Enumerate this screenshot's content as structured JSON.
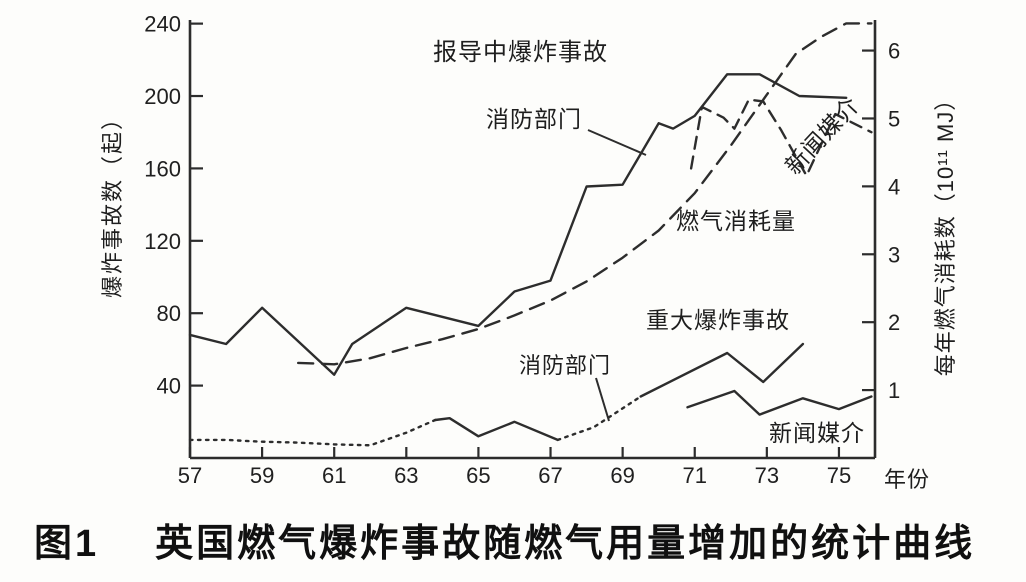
{
  "figure": {
    "caption_prefix": "图1",
    "caption": "英国燃气爆炸事故随燃气用量增加的统计曲线"
  },
  "colors": {
    "line": "#2d2d2d",
    "text": "#1d1d1d",
    "background": "#fdfdfb"
  },
  "chart_data": {
    "type": "line",
    "title": "英国燃气爆炸事故随燃气用量增加的统计曲线",
    "grid": false,
    "legend": "inline-annotations",
    "x_axis": {
      "label": "年份",
      "min": 57,
      "max": 76,
      "ticks": [
        57,
        59,
        61,
        63,
        65,
        67,
        69,
        71,
        73,
        75
      ]
    },
    "y_left": {
      "label": "爆炸事故数（起）",
      "min": 0,
      "max": 242,
      "ticks": [
        240,
        200,
        160,
        120,
        80,
        40
      ]
    },
    "y_right": {
      "label": "每年燃气消耗数（10¹¹ MJ）",
      "min": 0,
      "max": 6.45,
      "ticks": [
        6,
        5,
        4,
        3,
        2,
        1
      ]
    },
    "annotations": {
      "reported_explosions": "报导中爆炸事故",
      "fire_dept_top": "消防部门",
      "news_media_top": "新闻媒介",
      "gas_consumption": "燃气消耗量",
      "major_explosions": "重大爆炸事故",
      "fire_dept_bottom": "消防部门",
      "news_media_bottom": "新闻媒介"
    },
    "series": [
      {
        "id": "reported-fire",
        "label": "报导中爆炸事故（消防部门）",
        "axis": "left",
        "segments": [
          {
            "style": "solid",
            "points": [
              [
                57,
                68
              ],
              [
                58,
                63
              ],
              [
                59,
                83
              ],
              [
                61,
                46
              ],
              [
                61.5,
                63
              ],
              [
                63,
                83
              ],
              [
                65,
                73
              ],
              [
                66,
                92
              ],
              [
                67,
                98
              ],
              [
                68,
                150
              ],
              [
                69,
                151
              ],
              [
                70,
                185
              ],
              [
                70.4,
                182
              ],
              [
                71,
                189
              ],
              [
                71.9,
                212
              ],
              [
                72.8,
                212
              ],
              [
                73.9,
                200
              ],
              [
                75.2,
                199
              ]
            ]
          }
        ]
      },
      {
        "id": "reported-media",
        "label": "报导中爆炸事故（新闻媒介）",
        "axis": "left",
        "segments": [
          {
            "style": "dashed",
            "points": [
              [
                70.9,
                160
              ],
              [
                71.2,
                194
              ],
              [
                71.8,
                188
              ],
              [
                72.1,
                182
              ],
              [
                72.5,
                198
              ],
              [
                72.9,
                197
              ],
              [
                73.4,
                181
              ],
              [
                74.1,
                156
              ],
              [
                74.9,
                190
              ],
              [
                75.3,
                186
              ],
              [
                75.9,
                180
              ]
            ]
          }
        ]
      },
      {
        "id": "gas-consumption",
        "label": "燃气消耗量",
        "axis": "right",
        "segments": [
          {
            "style": "longdash",
            "points": [
              [
                60,
                1.4
              ],
              [
                61,
                1.38
              ],
              [
                62,
                1.47
              ],
              [
                63,
                1.62
              ],
              [
                64,
                1.75
              ],
              [
                65,
                1.9
              ],
              [
                66,
                2.1
              ],
              [
                67,
                2.32
              ],
              [
                68,
                2.6
              ],
              [
                69,
                2.95
              ],
              [
                70,
                3.35
              ],
              [
                71,
                3.9
              ],
              [
                72,
                4.6
              ],
              [
                73,
                5.35
              ],
              [
                73.8,
                5.95
              ],
              [
                74.5,
                6.2
              ],
              [
                75.2,
                6.4
              ],
              [
                75.9,
                6.4
              ]
            ]
          }
        ]
      },
      {
        "id": "major-fire",
        "label": "重大爆炸事故（消防部门）",
        "axis": "left",
        "segments": [
          {
            "style": "dotted",
            "points": [
              [
                57,
                10
              ],
              [
                58,
                10
              ],
              [
                59,
                9
              ],
              [
                60,
                8.5
              ],
              [
                61,
                7.5
              ],
              [
                62,
                7
              ],
              [
                63,
                14
              ],
              [
                63.8,
                21
              ]
            ]
          },
          {
            "style": "solid",
            "points": [
              [
                63.8,
                21
              ],
              [
                64.2,
                22
              ],
              [
                65,
                12
              ],
              [
                66,
                20
              ],
              [
                67.2,
                10
              ]
            ]
          },
          {
            "style": "dotted",
            "points": [
              [
                67.2,
                10
              ],
              [
                68.2,
                17
              ],
              [
                69.5,
                34
              ]
            ]
          },
          {
            "style": "solid",
            "points": [
              [
                69.5,
                34
              ],
              [
                71.9,
                58
              ],
              [
                72.9,
                42
              ],
              [
                74,
                63
              ]
            ]
          }
        ]
      },
      {
        "id": "major-media",
        "label": "重大爆炸事故（新闻媒介）",
        "axis": "left",
        "segments": [
          {
            "style": "solid",
            "points": [
              [
                70.8,
                28
              ],
              [
                72.1,
                37
              ],
              [
                72.8,
                24
              ],
              [
                74,
                33
              ],
              [
                75,
                27
              ],
              [
                75.9,
                34
              ]
            ]
          }
        ]
      }
    ]
  }
}
